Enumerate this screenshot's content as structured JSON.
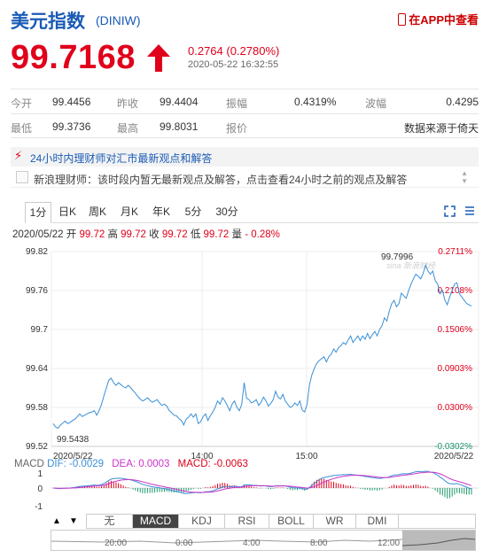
{
  "header": {
    "title": "美元指数",
    "code": "(DINIW)",
    "app_link": "在APP中查看"
  },
  "quote": {
    "price": "99.7168",
    "change": "0.2764 (0.2780%)",
    "timestamp": "2020-05-22 16:32:55",
    "up_color": "#e0001b"
  },
  "stats": [
    [
      {
        "label": "今开",
        "value": "99.4456"
      },
      {
        "label": "昨收",
        "value": "99.4404"
      },
      {
        "label": "振幅",
        "value": "0.4319%"
      },
      {
        "label": "波幅",
        "value": "0.4295"
      }
    ],
    [
      {
        "label": "最低",
        "value": "99.3736"
      },
      {
        "label": "最高",
        "value": "99.8031"
      },
      {
        "label": "报价",
        "value": "数据来源于倚天"
      }
    ]
  ],
  "news": {
    "heading": "24小时内理财师对汇市最新观点和解答",
    "body": "新浪理财师：该时段内暂无最新观点及解答，点击查看24小时之前的观点及解答"
  },
  "period_tabs": [
    "1分",
    "日K",
    "周K",
    "月K",
    "年K",
    "5分",
    "30分"
  ],
  "active_period": "1分",
  "ohlc": {
    "date": "2020/05/22",
    "open_label": "开",
    "open": "99.72",
    "high_label": "高",
    "high": "99.72",
    "close_label": "收",
    "close": "99.72",
    "low_label": "低",
    "low": "99.72",
    "volume_label": "量",
    "volume": "- 0.28%"
  },
  "chart_data": {
    "type": "line",
    "y_ticks": [
      "99.82",
      "99.76",
      "99.7",
      "99.64",
      "99.58",
      "99.52"
    ],
    "y_range": [
      99.52,
      99.82
    ],
    "pct_ticks": [
      "0.2711%",
      "0.2108%",
      "0.1506%",
      "0.0903%",
      "0.0300%",
      "-0.0302%"
    ],
    "x_ticks": [
      "2020/5/22",
      "14:00",
      "15:00",
      "2020/5/22"
    ],
    "annotation_high": "99.7996",
    "annotation_low": "99.5438",
    "watermark": "sina 新浪财经",
    "line_color": "#3a8fd6",
    "series": [
      {
        "values": [
          99.555,
          99.55,
          99.548,
          99.553,
          99.556,
          99.559,
          99.555,
          99.557,
          99.56,
          99.562,
          99.566,
          99.57,
          99.566,
          99.568,
          99.57,
          99.572,
          99.573,
          99.575,
          99.568,
          99.575,
          99.585,
          99.598,
          99.61,
          99.622,
          99.625,
          99.618,
          99.614,
          99.618,
          99.615,
          99.612,
          99.61,
          99.614,
          99.611,
          99.606,
          99.602,
          99.597,
          99.593,
          99.59,
          99.592,
          99.595,
          99.591,
          99.588,
          99.59,
          99.592,
          99.587,
          99.583,
          99.585,
          99.582,
          99.575,
          99.572,
          99.568,
          99.567,
          99.563,
          99.56,
          99.553,
          99.562,
          99.565,
          99.57,
          99.565,
          99.57,
          99.555,
          99.558,
          99.566,
          99.57,
          99.56,
          99.567,
          99.573,
          99.58,
          99.59,
          99.585,
          99.595,
          99.59,
          99.583,
          99.575,
          99.585,
          99.59,
          99.58,
          99.575,
          99.585,
          99.618,
          99.594,
          99.592,
          99.587,
          99.589,
          99.592,
          99.583,
          99.588,
          99.596,
          99.59,
          99.582,
          99.586,
          99.592,
          99.605,
          99.596,
          99.593,
          99.6,
          99.59,
          99.585,
          99.58,
          99.582,
          99.587,
          99.583,
          99.59,
          99.576,
          99.573,
          99.585,
          99.615,
          99.63,
          99.64,
          99.648,
          99.652,
          99.655,
          99.658,
          99.65,
          99.658,
          99.662,
          99.67,
          99.665,
          99.672,
          99.675,
          99.68,
          99.677,
          99.684,
          99.69,
          99.68,
          99.685,
          99.69,
          99.683,
          99.69,
          99.685,
          99.694,
          99.686,
          99.692,
          99.697,
          99.69,
          99.7,
          99.706,
          99.718,
          99.713,
          99.728,
          99.74,
          99.745,
          99.735,
          99.74,
          99.756,
          99.752,
          99.748,
          99.76,
          99.77,
          99.778,
          99.785,
          99.782,
          99.778,
          99.786,
          99.799,
          99.79,
          99.785,
          99.79,
          99.775,
          99.77,
          99.755,
          99.76,
          99.745,
          99.738,
          99.75,
          99.76,
          99.77,
          99.772,
          99.755,
          99.75,
          99.745,
          99.74,
          99.738,
          99.736
        ]
      }
    ]
  },
  "macd": {
    "label": "MACD",
    "dif_label": "DIF:",
    "dif": "-0.0029",
    "dea_label": "DEA:",
    "dea": "0.0003",
    "macd_label": "MACD:",
    "macd_value": "-0.0063",
    "y_ticks": [
      "1",
      "0",
      "-1"
    ],
    "dif_color": "#3a8fd6",
    "dea_color": "#cc33cc",
    "macd_color": "#e0001b",
    "hist_up_color": "#e0001b",
    "hist_down_color": "#1a9a6a"
  },
  "indicator_tabs": [
    "无",
    "MACD",
    "KDJ",
    "RSI",
    "BOLL",
    "WR",
    "DMI"
  ],
  "active_indicator": "MACD",
  "indicator_nav": {
    "up": "▲",
    "down": "▼"
  },
  "timeline_labels": [
    "20:00",
    "0:00",
    "4:00",
    "8:00",
    "12:00"
  ]
}
